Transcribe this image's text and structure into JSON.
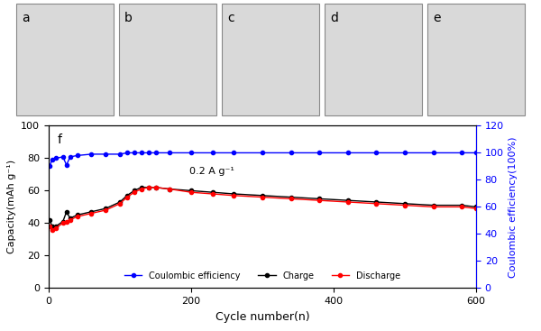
{
  "panels": [
    "a",
    "b",
    "c",
    "d",
    "e"
  ],
  "chart_data": {
    "type": "line",
    "title": "f",
    "annotation": "0.2 A g⁻¹",
    "x_label": "Cycle number(n)",
    "y_label": "Capacity(mAh g⁻¹)",
    "y2_label": "Coulombic efficiency(100%)",
    "x": [
      1,
      5,
      10,
      20,
      25,
      30,
      40,
      60,
      80,
      100,
      110,
      120,
      130,
      140,
      150,
      170,
      200,
      230,
      260,
      300,
      340,
      380,
      420,
      460,
      500,
      540,
      580,
      600
    ],
    "series": [
      {
        "name": "Coulombic efficiency",
        "color": "#0000ff",
        "marker": "o",
        "axis": "y2",
        "values": [
          90,
          95,
          96,
          97,
          91,
          97,
          98,
          99,
          99,
          99,
          100,
          100,
          100,
          100,
          100,
          100,
          100,
          100,
          100,
          100,
          100,
          100,
          100,
          100,
          100,
          100,
          100,
          100
        ]
      },
      {
        "name": "Charge",
        "color": "#000000",
        "marker": "o",
        "values": [
          42,
          38,
          38,
          41,
          47,
          43,
          45,
          47,
          49,
          53,
          57,
          60,
          62,
          62,
          62,
          61,
          60,
          59,
          58,
          57,
          56,
          55,
          54,
          53,
          52,
          51,
          51,
          50
        ]
      },
      {
        "name": "Discharge",
        "color": "#ff0000",
        "marker": "o",
        "values": [
          38,
          36,
          37,
          40,
          41,
          42,
          44,
          46,
          48,
          52,
          56,
          59,
          61,
          62,
          62,
          61,
          59,
          58,
          57,
          56,
          55,
          54,
          53,
          52,
          51,
          50,
          50,
          49
        ]
      }
    ],
    "xlim": [
      0,
      600
    ],
    "xticks": [
      0,
      200,
      400,
      600
    ],
    "ylim": [
      0,
      100
    ],
    "yticks": [
      0,
      20,
      40,
      60,
      80,
      100
    ],
    "y2lim": [
      0,
      120
    ],
    "y2ticks": [
      0,
      20,
      40,
      60,
      80,
      100,
      120
    ],
    "legend": "lower center"
  }
}
